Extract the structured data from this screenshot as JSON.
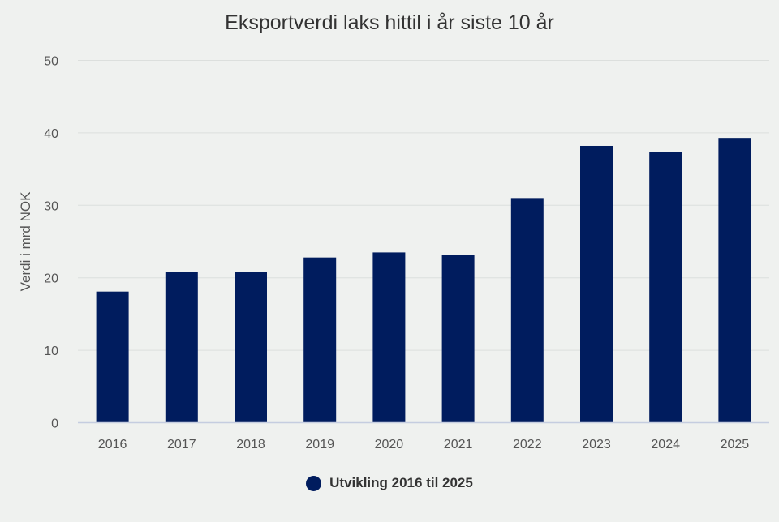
{
  "chart_data": {
    "type": "bar",
    "title": "Eksportverdi laks hittil i år siste 10 år",
    "xlabel": "",
    "ylabel": "Verdi i mrd NOK",
    "categories": [
      "2016",
      "2017",
      "2018",
      "2019",
      "2020",
      "2021",
      "2022",
      "2023",
      "2024",
      "2025"
    ],
    "series": [
      {
        "name": "Utvikling 2016 til 2025",
        "values": [
          18.1,
          20.8,
          20.8,
          22.8,
          23.5,
          23.1,
          31.0,
          38.2,
          37.4,
          39.3
        ],
        "color": "#001c5e"
      }
    ],
    "ylim": [
      0,
      50
    ],
    "yticks": [
      "0",
      "10",
      "20",
      "30",
      "40",
      "50"
    ],
    "grid": true,
    "legend_position": "bottom"
  }
}
